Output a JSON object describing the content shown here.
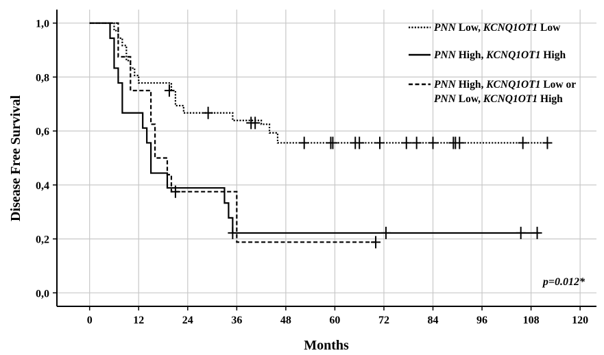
{
  "chart_data": {
    "type": "line",
    "xlabel": "Months",
    "ylabel": "Disease Free Survival",
    "xlim": [
      -8,
      124
    ],
    "ylim": [
      -0.05,
      1.05
    ],
    "x_ticks": [
      0,
      12,
      24,
      36,
      48,
      60,
      72,
      84,
      96,
      108,
      120
    ],
    "x_tick_labels": [
      "0",
      "12",
      "24",
      "36",
      "48",
      "60",
      "72",
      "84",
      "96",
      "108",
      "120"
    ],
    "y_ticks": [
      0,
      0.2,
      0.4,
      0.6,
      0.8,
      1.0
    ],
    "y_tick_labels": [
      "0,0",
      "0,2",
      "0,4",
      "0,6",
      "0,8",
      "1,0"
    ],
    "grid": true,
    "legend_position": "top-right",
    "annotation": "p=0.012*",
    "series": [
      {
        "name": "PNN Low, KCNQ1OT1 Low",
        "legend_parts": [
          {
            "text": "PNN",
            "italic": true
          },
          {
            "text": " Low, ",
            "italic": false
          },
          {
            "text": "KCNQ1OT1",
            "italic": true
          },
          {
            "text": " Low",
            "italic": false
          }
        ],
        "style": "dotted",
        "steps": [
          [
            0,
            1.0
          ],
          [
            6,
            0.972
          ],
          [
            7,
            0.944
          ],
          [
            8,
            0.917
          ],
          [
            9,
            0.861
          ],
          [
            10,
            0.833
          ],
          [
            11,
            0.806
          ],
          [
            12,
            0.778
          ],
          [
            20,
            0.75
          ],
          [
            21,
            0.694
          ],
          [
            23,
            0.667
          ],
          [
            35,
            0.639
          ],
          [
            42,
            0.625
          ],
          [
            44,
            0.593
          ],
          [
            46,
            0.556
          ],
          [
            112,
            0.556
          ]
        ],
        "censored": [
          [
            19.5,
            0.75
          ],
          [
            29,
            0.667
          ],
          [
            39.5,
            0.63
          ],
          [
            40.5,
            0.63
          ],
          [
            52.5,
            0.556
          ],
          [
            59,
            0.556
          ],
          [
            59.5,
            0.556
          ],
          [
            65,
            0.556
          ],
          [
            66,
            0.556
          ],
          [
            71,
            0.556
          ],
          [
            77.5,
            0.556
          ],
          [
            80,
            0.556
          ],
          [
            84,
            0.556
          ],
          [
            89,
            0.556
          ],
          [
            89.5,
            0.556
          ],
          [
            90.5,
            0.556
          ],
          [
            106,
            0.556
          ],
          [
            112,
            0.556
          ]
        ]
      },
      {
        "name": "PNN High, KCNQ1OT1 High",
        "legend_parts": [
          {
            "text": "PNN",
            "italic": true
          },
          {
            "text": " High, ",
            "italic": false
          },
          {
            "text": "KCNQ1OT1",
            "italic": true
          },
          {
            "text": " High",
            "italic": false
          }
        ],
        "style": "solid",
        "steps": [
          [
            0,
            1.0
          ],
          [
            5,
            0.944
          ],
          [
            6,
            0.833
          ],
          [
            7,
            0.778
          ],
          [
            8,
            0.667
          ],
          [
            13,
            0.611
          ],
          [
            14,
            0.556
          ],
          [
            15,
            0.444
          ],
          [
            19,
            0.389
          ],
          [
            33,
            0.333
          ],
          [
            34,
            0.278
          ],
          [
            35,
            0.222
          ],
          [
            110,
            0.222
          ]
        ],
        "censored": [
          [
            35,
            0.222
          ],
          [
            72.5,
            0.222
          ],
          [
            105.5,
            0.222
          ],
          [
            109.5,
            0.222
          ]
        ]
      },
      {
        "name": "PNN High, KCNQ1OT1 Low or PNN Low, KCNQ1OT1 High",
        "legend_parts": [
          {
            "text": "PNN",
            "italic": true
          },
          {
            "text": " High, ",
            "italic": false
          },
          {
            "text": "KCNQ1OT1",
            "italic": true
          },
          {
            "text": " Low or",
            "italic": false
          }
        ],
        "legend_parts_line2": [
          {
            "text": "PNN",
            "italic": true
          },
          {
            "text": " Low, ",
            "italic": false
          },
          {
            "text": "KCNQ1OT1",
            "italic": true
          },
          {
            "text": " High",
            "italic": false
          }
        ],
        "style": "dashed",
        "steps": [
          [
            0,
            1.0
          ],
          [
            7,
            0.875
          ],
          [
            10,
            0.75
          ],
          [
            15,
            0.625
          ],
          [
            16,
            0.5
          ],
          [
            19,
            0.438
          ],
          [
            20,
            0.375
          ],
          [
            36,
            0.188
          ],
          [
            70,
            0.188
          ]
        ],
        "censored": [
          [
            21,
            0.375
          ],
          [
            70,
            0.188
          ]
        ]
      }
    ]
  }
}
